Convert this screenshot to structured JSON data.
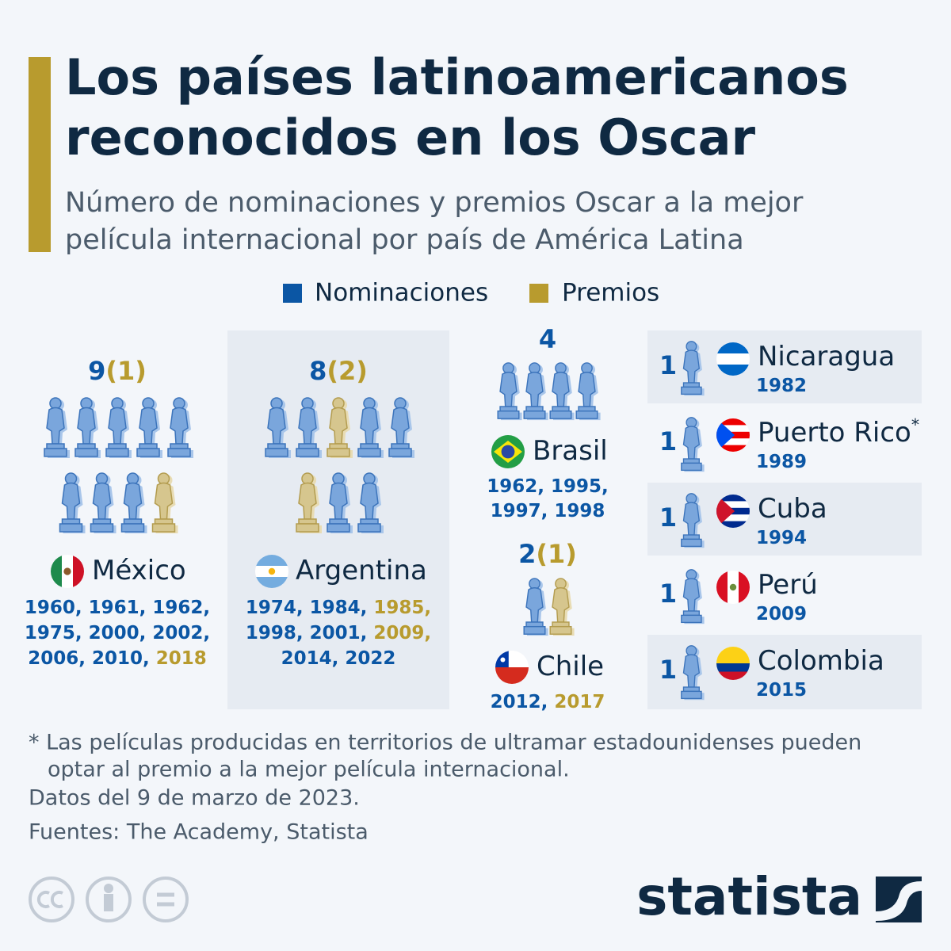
{
  "header": {
    "title": [
      "Los países latinoamericanos",
      "reconocidos en los Oscar"
    ],
    "subtitle": [
      "Número de nominaciones y premios Oscar a la mejor",
      "película internacional por país de América Latina"
    ]
  },
  "legend": [
    {
      "label": "Nominaciones",
      "color": "#0b56a4"
    },
    {
      "label": "Premios",
      "color": "#b89b2e"
    }
  ],
  "countries": [
    {
      "name": "México",
      "nominations": 9,
      "awards": 1,
      "awards_label": "(1)",
      "years": [
        [
          {
            "text": "1960,",
            "won": false
          },
          {
            "text": "1961,",
            "won": false
          },
          {
            "text": "1962,",
            "won": false
          }
        ],
        [
          {
            "text": "1975,",
            "won": false
          },
          {
            "text": "2000,",
            "won": false
          },
          {
            "text": "2002,",
            "won": false
          }
        ],
        [
          {
            "text": "2006,",
            "won": false
          },
          {
            "text": "2010,",
            "won": false
          },
          {
            "text": "2018",
            "won": true
          }
        ]
      ]
    },
    {
      "name": "Argentina",
      "nominations": 8,
      "awards": 2,
      "awards_label": "(2)",
      "years": [
        [
          {
            "text": "1974,",
            "won": false
          },
          {
            "text": "1984,",
            "won": false
          },
          {
            "text": "1985,",
            "won": true
          }
        ],
        [
          {
            "text": "1998,",
            "won": false
          },
          {
            "text": "2001,",
            "won": false
          },
          {
            "text": "2009,",
            "won": true
          }
        ],
        [
          {
            "text": "2014,",
            "won": false
          },
          {
            "text": "2022",
            "won": false
          }
        ]
      ]
    },
    {
      "name": "Brasil",
      "nominations": 4,
      "years": [
        [
          {
            "text": "1962,",
            "won": false
          },
          {
            "text": "1995,",
            "won": false
          }
        ],
        [
          {
            "text": "1997,",
            "won": false
          },
          {
            "text": "1998",
            "won": false
          }
        ]
      ]
    },
    {
      "name": "Chile",
      "nominations": 2,
      "awards": 1,
      "awards_label": "(1)",
      "years": [
        [
          {
            "text": "2012,",
            "won": false
          },
          {
            "text": "2017",
            "won": true
          }
        ]
      ]
    },
    {
      "name": "Nicaragua",
      "nominations": 1,
      "years": [
        [
          {
            "text": "1982",
            "won": false
          }
        ]
      ]
    },
    {
      "name": "Puerto Rico",
      "note_marker": "*",
      "nominations": 1,
      "years": [
        [
          {
            "text": "1989",
            "won": false
          }
        ]
      ]
    },
    {
      "name": "Cuba",
      "nominations": 1,
      "years": [
        [
          {
            "text": "1994",
            "won": false
          }
        ]
      ]
    },
    {
      "name": "Perú",
      "nominations": 1,
      "years": [
        [
          {
            "text": "2009",
            "won": false
          }
        ]
      ]
    },
    {
      "name": "Colombia",
      "nominations": 1,
      "years": [
        [
          {
            "text": "2015",
            "won": false
          }
        ]
      ]
    }
  ],
  "footnote": [
    "* Las películas producidas en territorios de ultramar estadounidenses pueden",
    "optar al premio a la mejor película internacional."
  ],
  "date_note": "Datos del 9 de marzo de 2023.",
  "sources": "Fuentes: The Academy, Statista",
  "brand": "statista"
}
